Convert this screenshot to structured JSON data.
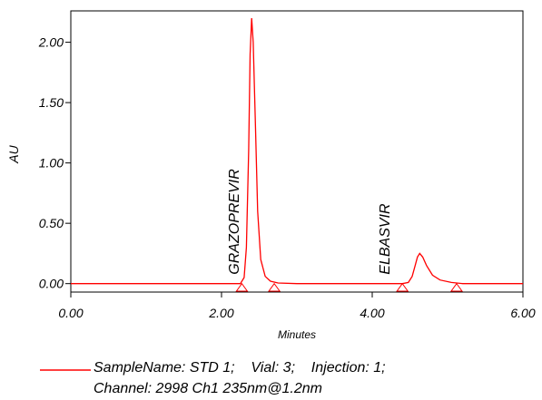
{
  "chart_data": {
    "type": "line",
    "y_label": "AU",
    "x_label": "Minutes",
    "xlim": [
      0,
      6
    ],
    "ylim": [
      -0.07,
      2.26
    ],
    "xticks": [
      {
        "value": 0,
        "label": "0.00"
      },
      {
        "value": 2,
        "label": "2.00"
      },
      {
        "value": 4,
        "label": "4.00"
      },
      {
        "value": 6,
        "label": "6.00"
      }
    ],
    "yticks": [
      {
        "value": 0,
        "label": "0.00"
      },
      {
        "value": 0.5,
        "label": "0.50"
      },
      {
        "value": 1,
        "label": "1.00"
      },
      {
        "value": 1.5,
        "label": "1.50"
      },
      {
        "value": 2,
        "label": "2.00"
      }
    ],
    "x": [
      0,
      2.0,
      2.25,
      2.3,
      2.33,
      2.36,
      2.38,
      2.4,
      2.42,
      2.45,
      2.48,
      2.52,
      2.58,
      2.65,
      2.75,
      3.0,
      4.4,
      4.48,
      4.53,
      4.57,
      4.6,
      4.63,
      4.67,
      4.72,
      4.8,
      4.9,
      5.05,
      5.2,
      6.0
    ],
    "series": [
      {
        "name": "SampleName: STD 1;    Vial: 3;    Injection: 1;",
        "color": "#ff0000",
        "values": [
          0,
          0,
          0,
          0.05,
          0.3,
          1.1,
          1.9,
          2.2,
          2.0,
          1.3,
          0.6,
          0.2,
          0.06,
          0.02,
          0.005,
          0,
          0,
          0.01,
          0.06,
          0.15,
          0.22,
          0.25,
          0.22,
          0.15,
          0.07,
          0.03,
          0.01,
          0,
          0
        ]
      }
    ],
    "channel": "Channel: 2998 Ch1 235nm@1.2nm",
    "peak_labels": [
      {
        "x": 2.4,
        "text": "GRAZOPREVIR"
      },
      {
        "x": 4.4,
        "text": "ELBASVIR"
      }
    ],
    "integration_marks": [
      2.27,
      2.7,
      4.4,
      5.12
    ]
  }
}
